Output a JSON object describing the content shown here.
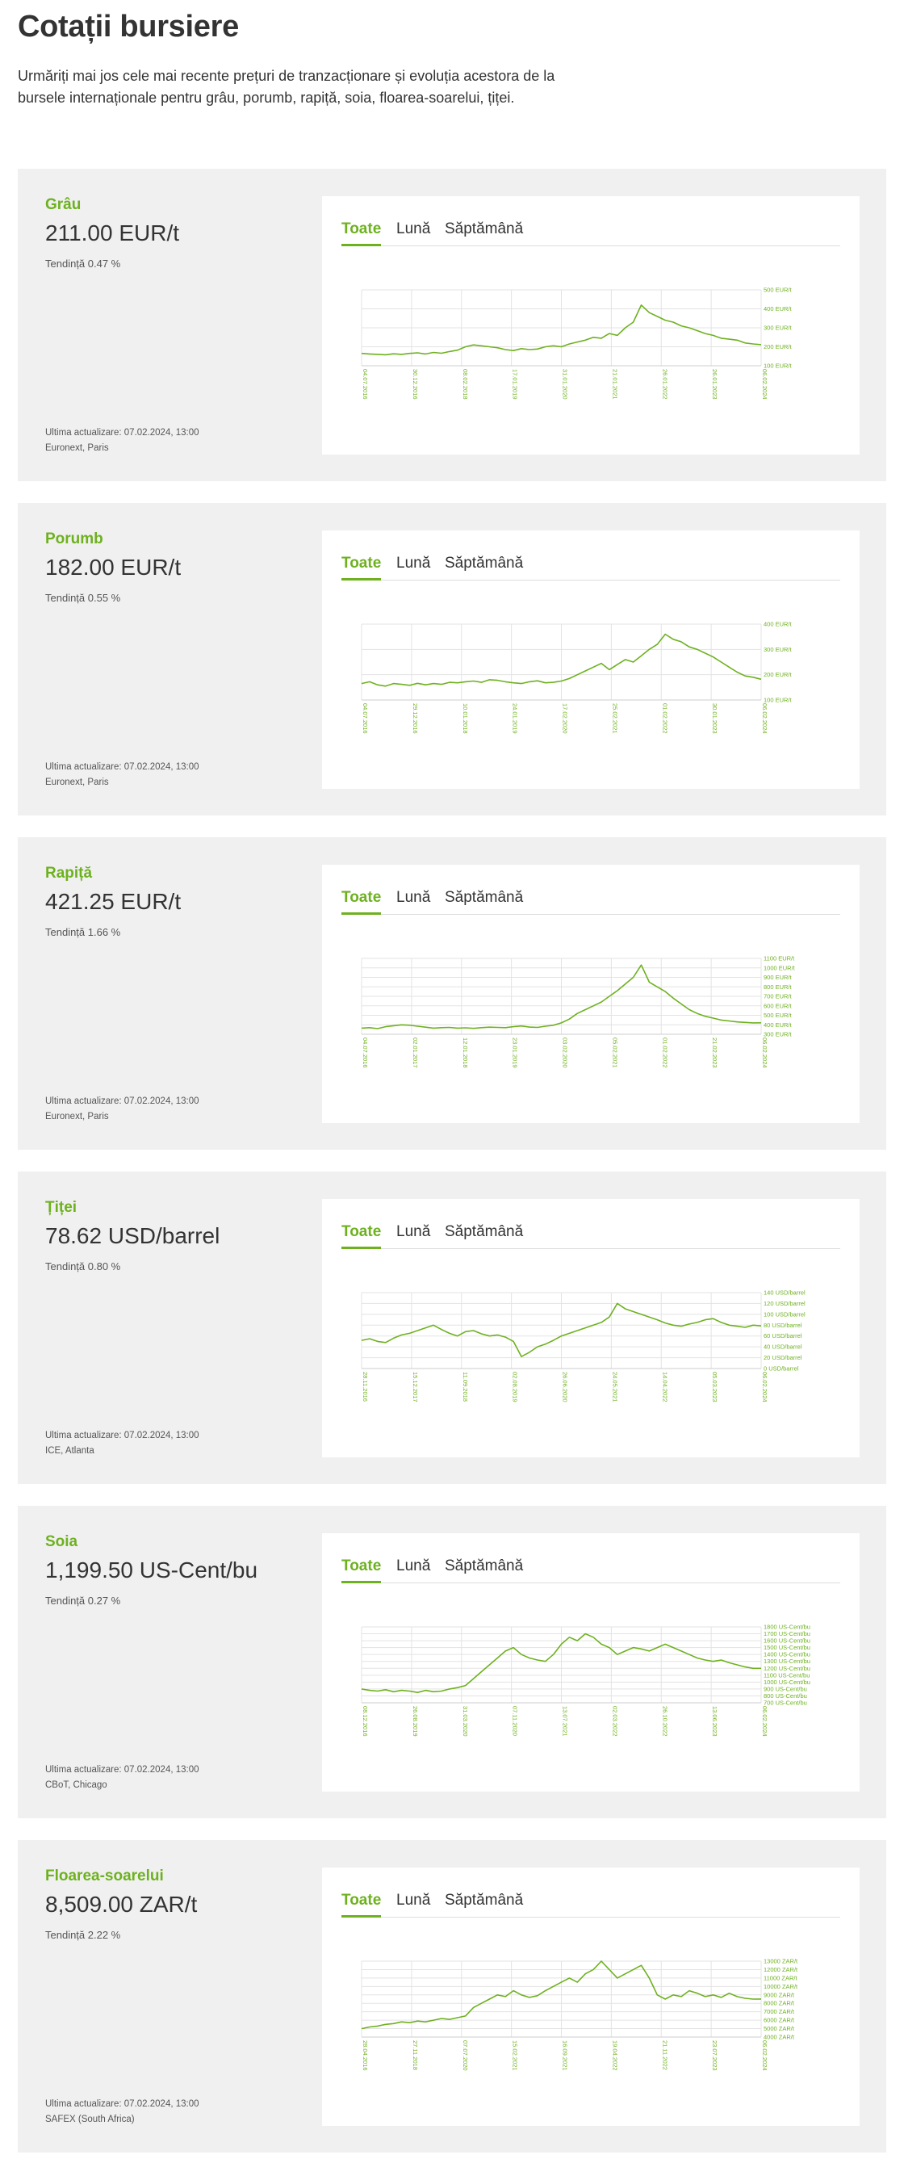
{
  "page": {
    "title": "Cotații bursiere",
    "intro": "Urmăriți mai jos cele mai recente prețuri de tranzacționare și evoluția acestora de la bursele internaționale pentru grâu, porumb, rapiță, soia, floarea-soarelui, țiței."
  },
  "colors": {
    "accent": "#6eb11f",
    "card_bg": "#f0f0f1",
    "text": "#333333"
  },
  "tabs": [
    "Toate",
    "Lună",
    "Săptămână"
  ],
  "cards": [
    {
      "name": "Grâu",
      "price": "211.00 EUR/t",
      "trend": "Tendință 0.47 %",
      "updated": "Ultima actualizare: 07.02.2024, 13:00",
      "exchange": "Euronext, Paris",
      "chart_data": {
        "type": "line",
        "y_ticks": [
          "500 EUR/t",
          "400 EUR/t",
          "300 EUR/t",
          "200 EUR/t",
          "100 EUR/t"
        ],
        "x_ticks": [
          "04.07.2016",
          "30.12.2016",
          "08.02.2018",
          "17.01.2019",
          "31.01.2020",
          "21.01.2021",
          "26.01.2022",
          "26.01.2023",
          "06.02.2024"
        ],
        "ylim": [
          100,
          500
        ],
        "series": [
          {
            "values": [
              165,
              162,
              160,
              158,
              163,
              160,
              165,
              168,
              162,
              170,
              166,
              175,
              182,
              200,
              210,
              205,
              200,
              195,
              185,
              180,
              190,
              185,
              188,
              200,
              205,
              200,
              215,
              225,
              235,
              250,
              245,
              270,
              260,
              300,
              330,
              420,
              380,
              360,
              340,
              330,
              310,
              300,
              285,
              270,
              260,
              245,
              240,
              235,
              220,
              215,
              211
            ]
          }
        ]
      }
    },
    {
      "name": "Porumb",
      "price": "182.00 EUR/t",
      "trend": "Tendință 0.55 %",
      "updated": "Ultima actualizare: 07.02.2024, 13:00",
      "exchange": "Euronext, Paris",
      "chart_data": {
        "type": "line",
        "y_ticks": [
          "400 EUR/t",
          "300 EUR/t",
          "200 EUR/t",
          "100 EUR/t"
        ],
        "x_ticks": [
          "04.07.2016",
          "29.12.2016",
          "10.01.2018",
          "24.01.2019",
          "17.02.2020",
          "25.02.2021",
          "01.02.2022",
          "30.01.2023",
          "06.02.2024"
        ],
        "ylim": [
          100,
          400
        ],
        "series": [
          {
            "values": [
              165,
              172,
              160,
              155,
              165,
              162,
              158,
              166,
              160,
              165,
              162,
              170,
              168,
              172,
              175,
              170,
              180,
              178,
              172,
              168,
              165,
              172,
              176,
              168,
              170,
              175,
              185,
              200,
              215,
              230,
              245,
              220,
              240,
              260,
              250,
              275,
              300,
              320,
              360,
              340,
              330,
              310,
              300,
              285,
              270,
              250,
              230,
              210,
              195,
              190,
              182
            ]
          }
        ]
      }
    },
    {
      "name": "Rapiță",
      "price": "421.25 EUR/t",
      "trend": "Tendință 1.66 %",
      "updated": "Ultima actualizare: 07.02.2024, 13:00",
      "exchange": "Euronext, Paris",
      "chart_data": {
        "type": "line",
        "y_ticks": [
          "1100 EUR/t",
          "1000 EUR/t",
          "900 EUR/t",
          "800 EUR/t",
          "700 EUR/t",
          "600 EUR/t",
          "500 EUR/t",
          "400 EUR/t",
          "300 EUR/t"
        ],
        "x_ticks": [
          "04.07.2016",
          "02.01.2017",
          "12.01.2018",
          "23.01.2019",
          "03.02.2020",
          "05.02.2021",
          "01.02.2022",
          "21.02.2023",
          "06.02.2024"
        ],
        "ylim": [
          300,
          1100
        ],
        "series": [
          {
            "values": [
              365,
              370,
              360,
              380,
              390,
              400,
              395,
              385,
              375,
              365,
              370,
              372,
              365,
              368,
              362,
              370,
              375,
              372,
              370,
              380,
              388,
              376,
              372,
              385,
              395,
              420,
              460,
              520,
              560,
              600,
              640,
              700,
              760,
              830,
              900,
              1030,
              850,
              800,
              750,
              680,
              620,
              560,
              520,
              490,
              470,
              450,
              440,
              430,
              425,
              420,
              421
            ]
          }
        ]
      }
    },
    {
      "name": "Țiței",
      "price": "78.62 USD/barrel",
      "trend": "Tendință 0.80 %",
      "updated": "Ultima actualizare: 07.02.2024, 13:00",
      "exchange": "ICE, Atlanta",
      "chart_data": {
        "type": "line",
        "y_ticks": [
          "140 USD/barrel",
          "120 USD/barrel",
          "100 USD/barrel",
          "80 USD/barrel",
          "60 USD/barrel",
          "40 USD/barrel",
          "20 USD/barrel",
          "0 USD/barrel"
        ],
        "x_ticks": [
          "28.11.2016",
          "15.12.2017",
          "11.09.2018",
          "02.08.2019",
          "26.06.2020",
          "24.05.2021",
          "14.04.2022",
          "05.03.2023",
          "06.02.2024"
        ],
        "ylim": [
          0,
          140
        ],
        "series": [
          {
            "values": [
              52,
              55,
              50,
              48,
              56,
              62,
              65,
              70,
              75,
              80,
              72,
              65,
              60,
              68,
              70,
              64,
              60,
              62,
              58,
              50,
              22,
              30,
              40,
              45,
              52,
              60,
              65,
              70,
              75,
              80,
              85,
              95,
              120,
              110,
              105,
              100,
              95,
              90,
              84,
              80,
              78,
              82,
              85,
              90,
              92,
              85,
              80,
              78,
              76,
              80,
              78.62
            ]
          }
        ]
      }
    },
    {
      "name": "Soia",
      "price": "1,199.50 US-Cent/bu",
      "trend": "Tendință 0.27 %",
      "updated": "Ultima actualizare: 07.02.2024, 13:00",
      "exchange": "CBoT, Chicago",
      "chart_data": {
        "type": "line",
        "y_ticks": [
          "1800 US-Cent/bu",
          "1700 US-Cent/bu",
          "1600 US-Cent/bu",
          "1500 US-Cent/bu",
          "1400 US-Cent/bu",
          "1300 US-Cent/bu",
          "1200 US-Cent/bu",
          "1100 US-Cent/bu",
          "1000 US-Cent/bu",
          "900 US-Cent/bu",
          "800 US-Cent/bu",
          "700 US-Cent/bu"
        ],
        "x_ticks": [
          "08.12.2016",
          "26.08.2019",
          "31.03.2020",
          "07.11.2020",
          "13.07.2021",
          "02.03.2022",
          "26.10.2022",
          "13.06.2023",
          "06.02.2024"
        ],
        "ylim": [
          700,
          1800
        ],
        "series": [
          {
            "values": [
              900,
              880,
              870,
              890,
              860,
              880,
              870,
              850,
              880,
              860,
              870,
              900,
              920,
              950,
              1050,
              1150,
              1250,
              1350,
              1450,
              1500,
              1400,
              1350,
              1320,
              1300,
              1400,
              1550,
              1650,
              1600,
              1700,
              1650,
              1550,
              1500,
              1400,
              1450,
              1500,
              1480,
              1450,
              1500,
              1550,
              1500,
              1450,
              1400,
              1350,
              1320,
              1300,
              1320,
              1280,
              1250,
              1220,
              1200,
              1199.5
            ]
          }
        ]
      }
    },
    {
      "name": "Floarea-soarelui",
      "price": "8,509.00 ZAR/t",
      "trend": "Tendință 2.22 %",
      "updated": "Ultima actualizare: 07.02.2024, 13:00",
      "exchange": "SAFEX (South Africa)",
      "chart_data": {
        "type": "line",
        "y_ticks": [
          "13000 ZAR/t",
          "12000 ZAR/t",
          "11000 ZAR/t",
          "10000 ZAR/t",
          "9000 ZAR/t",
          "8000 ZAR/t",
          "7000 ZAR/t",
          "6000 ZAR/t",
          "5000 ZAR/t",
          "4000 ZAR/t"
        ],
        "x_ticks": [
          "28.04.2016",
          "27.11.2018",
          "07.07.2020",
          "15.02.2021",
          "16.09.2021",
          "19.04.2022",
          "21.11.2022",
          "23.07.2023",
          "06.02.2024"
        ],
        "ylim": [
          4000,
          13000
        ],
        "series": [
          {
            "values": [
              5000,
              5200,
              5300,
              5500,
              5600,
              5800,
              5700,
              5900,
              5800,
              6000,
              6200,
              6100,
              6300,
              6500,
              7500,
              8000,
              8500,
              9000,
              8800,
              9500,
              9000,
              8700,
              8900,
              9500,
              10000,
              10500,
              11000,
              10500,
              11500,
              12000,
              13000,
              12000,
              11000,
              11500,
              12000,
              12500,
              11000,
              9000,
              8500,
              9000,
              8800,
              9500,
              9200,
              8800,
              9000,
              8700,
              9200,
              8800,
              8600,
              8500,
              8509
            ]
          }
        ]
      }
    }
  ]
}
